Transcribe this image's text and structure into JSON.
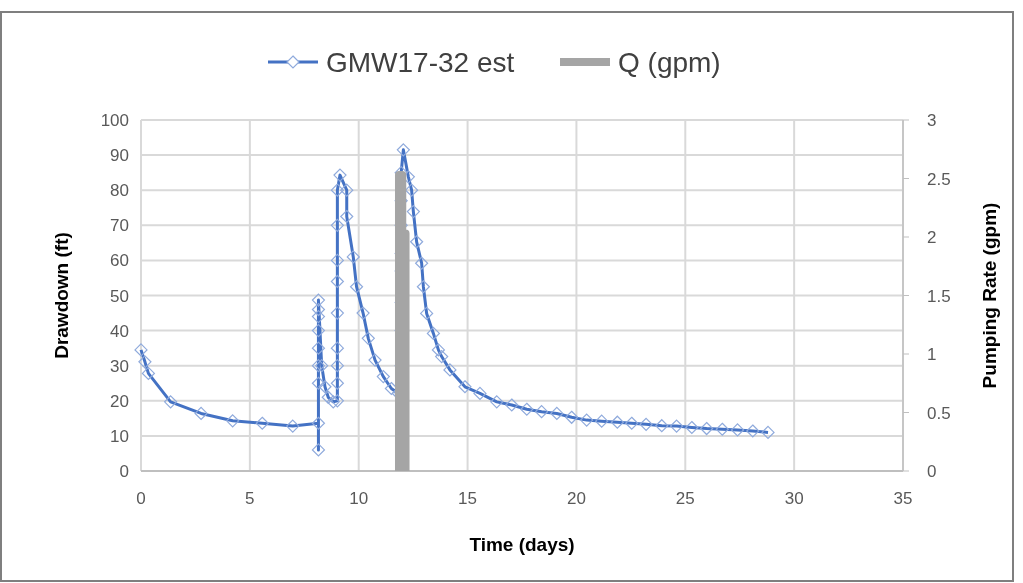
{
  "chart_data": {
    "type": "line",
    "xlabel": "Time (days)",
    "ylabel": "Drawdown (ft)",
    "y2label": "Pumping Rate (gpm)",
    "xlim": [
      0,
      35
    ],
    "xticks": [
      0,
      5,
      10,
      15,
      20,
      25,
      30,
      35
    ],
    "ylim": [
      0,
      100
    ],
    "yticks": [
      0,
      10,
      20,
      30,
      40,
      50,
      60,
      70,
      80,
      90,
      100
    ],
    "y2lim": [
      0,
      3
    ],
    "y2ticks": [
      0,
      0.5,
      1,
      1.5,
      2,
      2.5,
      3
    ],
    "grid": true,
    "legend": "top",
    "series": [
      {
        "name": "GMW17-32 est",
        "color": "#4472c4",
        "marker": "diamond",
        "x": [
          0,
          0.18,
          0.34,
          1.36,
          2.76,
          4.21,
          5.57,
          6.97,
          8.15,
          8.15,
          8.15,
          8.15,
          8.15,
          8.15,
          8.15,
          8.15,
          8.15,
          8.3,
          8.45,
          8.6,
          8.83,
          9.02,
          9.02,
          9.02,
          9.02,
          9.02,
          9.02,
          9.02,
          9.02,
          9.02,
          9.14,
          9.45,
          9.45,
          9.75,
          9.9,
          10.2,
          10.44,
          10.75,
          11.13,
          11.5,
          11.82,
          11.95,
          11.95,
          11.95,
          11.95,
          11.95,
          11.95,
          11.95,
          11.95,
          11.95,
          12.05,
          12.28,
          12.43,
          12.51,
          12.66,
          12.89,
          12.97,
          13.12,
          13.43,
          13.66,
          13.81,
          14.19,
          14.88,
          15.57,
          16.34,
          17.03,
          17.72,
          18.4,
          19.1,
          19.78,
          20.47,
          21.16,
          21.88,
          22.54,
          23.2,
          23.92,
          24.6,
          25.3,
          25.98,
          26.7,
          27.4,
          28.1,
          28.8
        ],
        "values": [
          34.5,
          31.1,
          27.8,
          19.7,
          16.4,
          14.3,
          13.6,
          12.8,
          13.6,
          6,
          25,
          30,
          35,
          40,
          44,
          46,
          48.7,
          30,
          24,
          21,
          19.7,
          20,
          25,
          30,
          35,
          45,
          54,
          60,
          70,
          80,
          84.3,
          80,
          72.5,
          61,
          52.5,
          45,
          37.8,
          31.6,
          26.9,
          23.5,
          22.1,
          22,
          30,
          40,
          48,
          57,
          62,
          70,
          77,
          85,
          91.5,
          83.8,
          80,
          73.9,
          65.3,
          59.2,
          52.5,
          44.9,
          39.2,
          34.5,
          32.6,
          28.8,
          24,
          22.1,
          19.7,
          18.8,
          17.6,
          16.9,
          16.4,
          15.3,
          14.5,
          14.2,
          13.9,
          13.6,
          13.3,
          12.9,
          12.8,
          12.4,
          12.1,
          11.9,
          11.7,
          11.4,
          11
        ]
      },
      {
        "name": "Q (gpm)",
        "color": "#a5a5a5",
        "marker": "none",
        "axis": "y2",
        "x": [
          11.85,
          11.85,
          12.0,
          12.0,
          12.15,
          12.15
        ],
        "values": [
          0,
          2.53,
          2.53,
          2.03,
          2.03,
          0
        ]
      }
    ]
  }
}
